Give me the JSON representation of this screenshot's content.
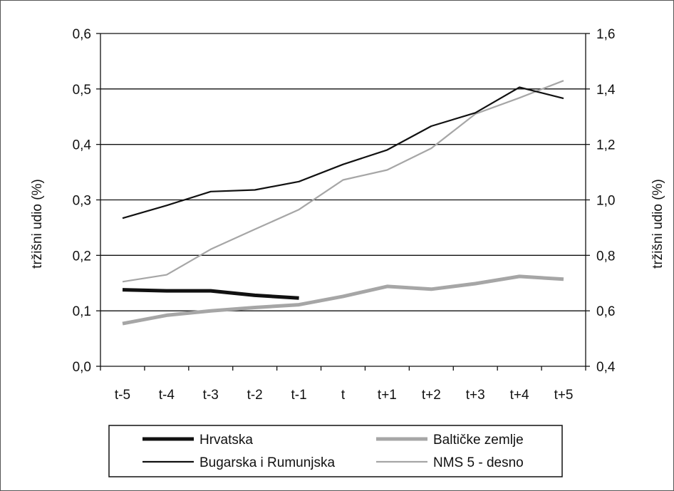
{
  "chart_data": {
    "type": "line",
    "categories": [
      "t-5",
      "t-4",
      "t-3",
      "t-2",
      "t-1",
      "t",
      "t+1",
      "t+2",
      "t+3",
      "t+4",
      "t+5"
    ],
    "y_left": {
      "label": "tržišni udio (%)",
      "range": [
        0,
        0.6
      ],
      "ticks": [
        "0,0",
        "0,1",
        "0,2",
        "0,3",
        "0,4",
        "0,5",
        "0,6"
      ]
    },
    "y_right": {
      "label": "tržišni udio (%)",
      "range": [
        0.4,
        1.6
      ],
      "ticks": [
        "0,4",
        "0,6",
        "0,8",
        "1,0",
        "1,2",
        "1,4",
        "1,6"
      ]
    },
    "grid": "horizontal",
    "legend_position": "bottom",
    "series": [
      {
        "name": "Hrvatska",
        "axis": "left",
        "color": "#111111",
        "style": "thick",
        "values": [
          0.138,
          0.136,
          0.136,
          0.128,
          0.123,
          null,
          null,
          null,
          null,
          null,
          null
        ]
      },
      {
        "name": "Bugarska i Rumunjska",
        "axis": "left",
        "color": "#111111",
        "style": "thin",
        "values": [
          0.267,
          0.29,
          0.315,
          0.318,
          0.333,
          0.364,
          0.39,
          0.433,
          0.457,
          0.503,
          0.483
        ]
      },
      {
        "name": "Baltičke zemlje",
        "axis": "left",
        "color": "#a6a6a6",
        "style": "thick",
        "values": [
          0.077,
          0.092,
          0.1,
          0.106,
          0.111,
          0.126,
          0.144,
          0.139,
          0.149,
          0.162,
          0.157
        ]
      },
      {
        "name": "NMS 5 - desno",
        "axis": "right",
        "color": "#a6a6a6",
        "style": "thin",
        "values": [
          0.705,
          0.73,
          0.822,
          0.894,
          0.965,
          1.072,
          1.108,
          1.186,
          1.31,
          1.368,
          1.43
        ]
      }
    ]
  }
}
